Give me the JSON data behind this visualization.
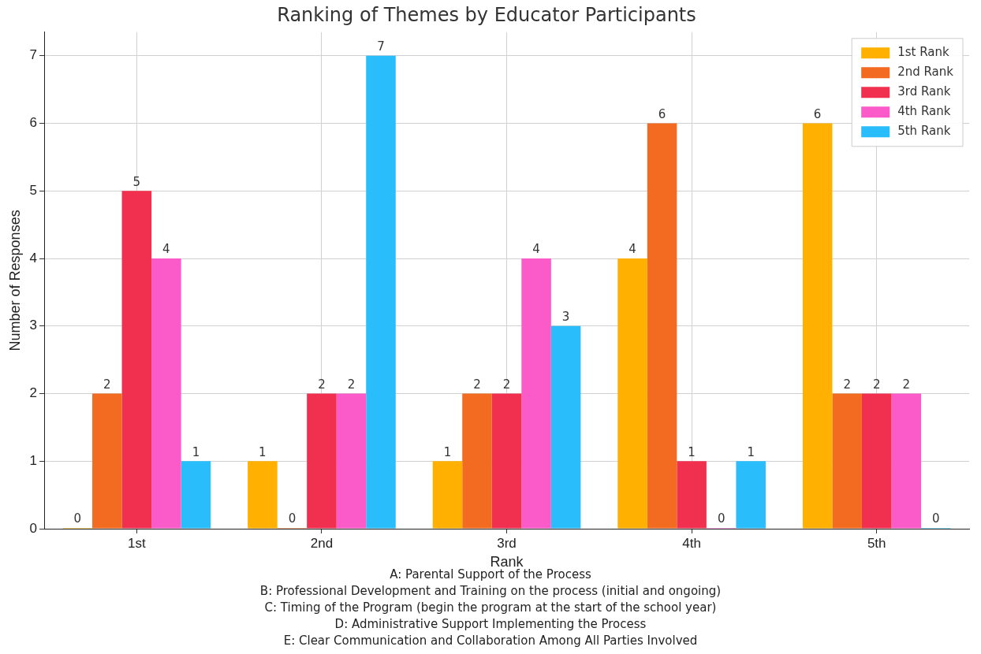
{
  "chart_data": {
    "type": "bar",
    "title": "Ranking of Themes by Educator Participants",
    "xlabel": "Rank",
    "ylabel": "Number of Responses",
    "categories": [
      "1st",
      "2nd",
      "3rd",
      "4th",
      "5th"
    ],
    "series": [
      {
        "name": "1st Rank",
        "color": "#ffb000",
        "values": [
          0,
          1,
          1,
          4,
          6
        ]
      },
      {
        "name": "2nd Rank",
        "color": "#f26b21",
        "values": [
          2,
          0,
          2,
          6,
          2
        ]
      },
      {
        "name": "3rd Rank",
        "color": "#f0304e",
        "values": [
          5,
          2,
          2,
          1,
          2
        ]
      },
      {
        "name": "4th Rank",
        "color": "#fb5bc8",
        "values": [
          4,
          2,
          4,
          0,
          2
        ]
      },
      {
        "name": "5th Rank",
        "color": "#29bdfb",
        "values": [
          1,
          7,
          3,
          1,
          0
        ]
      }
    ],
    "ylim": [
      0,
      7.35
    ],
    "yticks": [
      0,
      1,
      2,
      3,
      4,
      5,
      6,
      7
    ],
    "grid": true,
    "legend": "top right",
    "data_labels": true,
    "annotations": [
      "A: Parental Support of the Process",
      "B: Professional Development and Training on the process (initial and ongoing)",
      "C: Timing of the Program (begin the program at the start of the school year)",
      "D: Administrative Support Implementing the Process",
      "E: Clear Communication and Collaboration Among All Parties Involved"
    ]
  }
}
